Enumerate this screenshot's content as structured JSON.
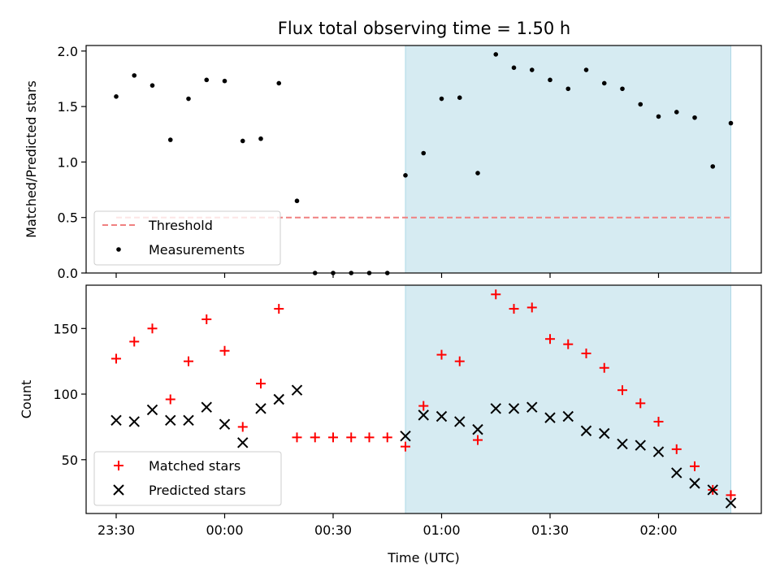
{
  "chart_data": {
    "type": "scatter",
    "title": "Flux total observing time = 1.50 h",
    "xlabel": "Time (UTC)",
    "x_ticks": [
      "23:30",
      "00:00",
      "00:30",
      "01:00",
      "01:30",
      "02:00"
    ],
    "highlight_span": {
      "start": "00:50",
      "end": "02:20",
      "color": "#add8e6"
    },
    "times": [
      "23:30",
      "23:35",
      "23:40",
      "23:45",
      "23:50",
      "23:55",
      "00:00",
      "00:05",
      "00:10",
      "00:15",
      "00:20",
      "00:25",
      "00:30",
      "00:35",
      "00:40",
      "00:45",
      "00:50",
      "00:55",
      "01:00",
      "01:05",
      "01:10",
      "01:15",
      "01:20",
      "01:25",
      "01:30",
      "01:35",
      "01:40",
      "01:45",
      "01:50",
      "01:55",
      "02:00",
      "02:05",
      "02:10",
      "02:15",
      "02:20"
    ],
    "panels": [
      {
        "ylabel": "Matched/Predicted stars",
        "ylim": [
          0,
          2.05
        ],
        "yticks": [
          "0.0",
          "0.5",
          "1.0",
          "1.5",
          "2.0"
        ],
        "ytick_values": [
          0,
          0.5,
          1.0,
          1.5,
          2.0
        ],
        "legend": {
          "position": "lower-left"
        },
        "threshold": {
          "name": "Threshold",
          "value": 0.5,
          "color": "#f08080"
        },
        "series": [
          {
            "name": "Measurements",
            "marker": "dot",
            "color": "#000000",
            "values": [
              1.59,
              1.78,
              1.69,
              1.2,
              1.57,
              1.74,
              1.73,
              1.19,
              1.21,
              1.71,
              0.65,
              0.0,
              0.0,
              0.0,
              0.0,
              0.0,
              0.88,
              1.08,
              1.57,
              1.58,
              0.9,
              1.97,
              1.85,
              1.83,
              1.74,
              1.66,
              1.83,
              1.71,
              1.66,
              1.52,
              1.41,
              1.45,
              1.4,
              0.96,
              1.35
            ]
          }
        ]
      },
      {
        "ylabel": "Count",
        "ylim": [
          9,
          183
        ],
        "yticks": [
          "50",
          "100",
          "150"
        ],
        "ytick_values": [
          50,
          100,
          150
        ],
        "legend": {
          "position": "lower-left"
        },
        "series": [
          {
            "name": "Matched stars",
            "marker": "plus",
            "color": "#ff0000",
            "values": [
              127,
              140,
              150,
              96,
              125,
              157,
              133,
              75,
              108,
              165,
              67,
              67,
              67,
              67,
              67,
              67,
              60,
              91,
              130,
              125,
              65,
              176,
              165,
              166,
              142,
              138,
              131,
              120,
              103,
              93,
              79,
              58,
              45,
              27,
              23
            ]
          },
          {
            "name": "Predicted stars",
            "marker": "x",
            "color": "#000000",
            "values": [
              80,
              79,
              88,
              80,
              80,
              90,
              77,
              63,
              89,
              96,
              103,
              null,
              null,
              null,
              null,
              null,
              68,
              84,
              83,
              79,
              73,
              89,
              89,
              90,
              82,
              83,
              72,
              70,
              62,
              61,
              56,
              40,
              32,
              27,
              17
            ]
          }
        ]
      }
    ]
  }
}
